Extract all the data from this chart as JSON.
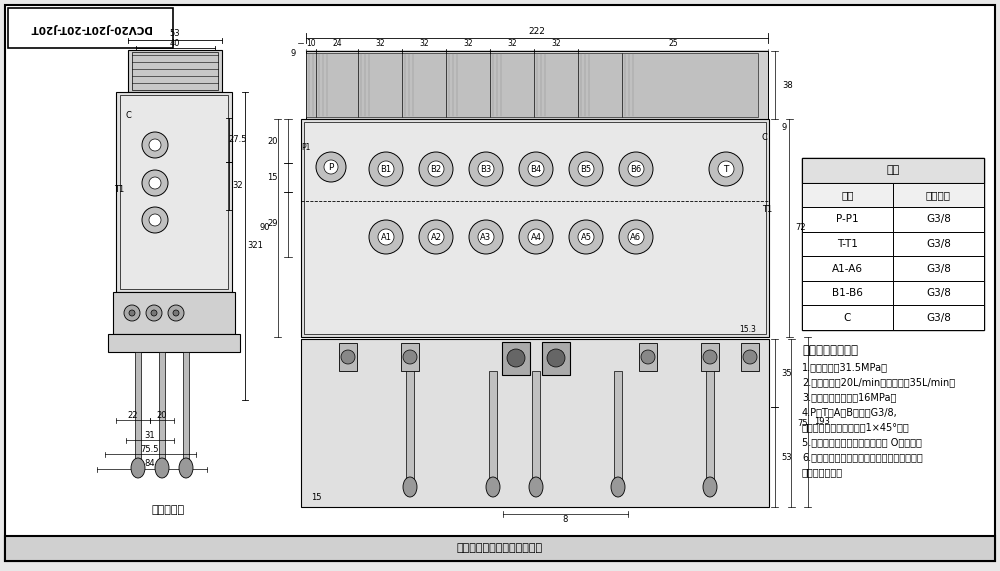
{
  "bg_color": "#e8e8e8",
  "drawing_bg": "#ffffff",
  "line_color": "#000000",
  "title_rotated": "DCV20-J20T-20T-J20T",
  "table_header": "阀体",
  "table_cols": [
    "接口",
    "负纹规格"
  ],
  "table_rows": [
    [
      "P-P1",
      "G3/8"
    ],
    [
      "T-T1",
      "G3/8"
    ],
    [
      "A1-A6",
      "G3/8"
    ],
    [
      "B1-B6",
      "G3/8"
    ],
    [
      "C",
      "G3/8"
    ]
  ],
  "tech_title": "技术要求及参数：",
  "tech_lines": [
    "1.额定压力：31.5MPa；",
    "2.额定流量：20L/min、最大流量35L/min；",
    "3.安装阀调定压力：16MPa；",
    "4.P、T、A、B口均为G3/8,",
    "均为平面密封，负纹孔口1×45°角。",
    "5.控制方式：手动、弹簧复位。 O型阀樿；",
    "6.阀体表面砖化处理，安全阀及螺绊钓锡，支",
    "架后盖为铝本色"
  ],
  "bottom_text": "图样仅供参考，请以实物为准",
  "hydraulic_label": "液压原理图"
}
